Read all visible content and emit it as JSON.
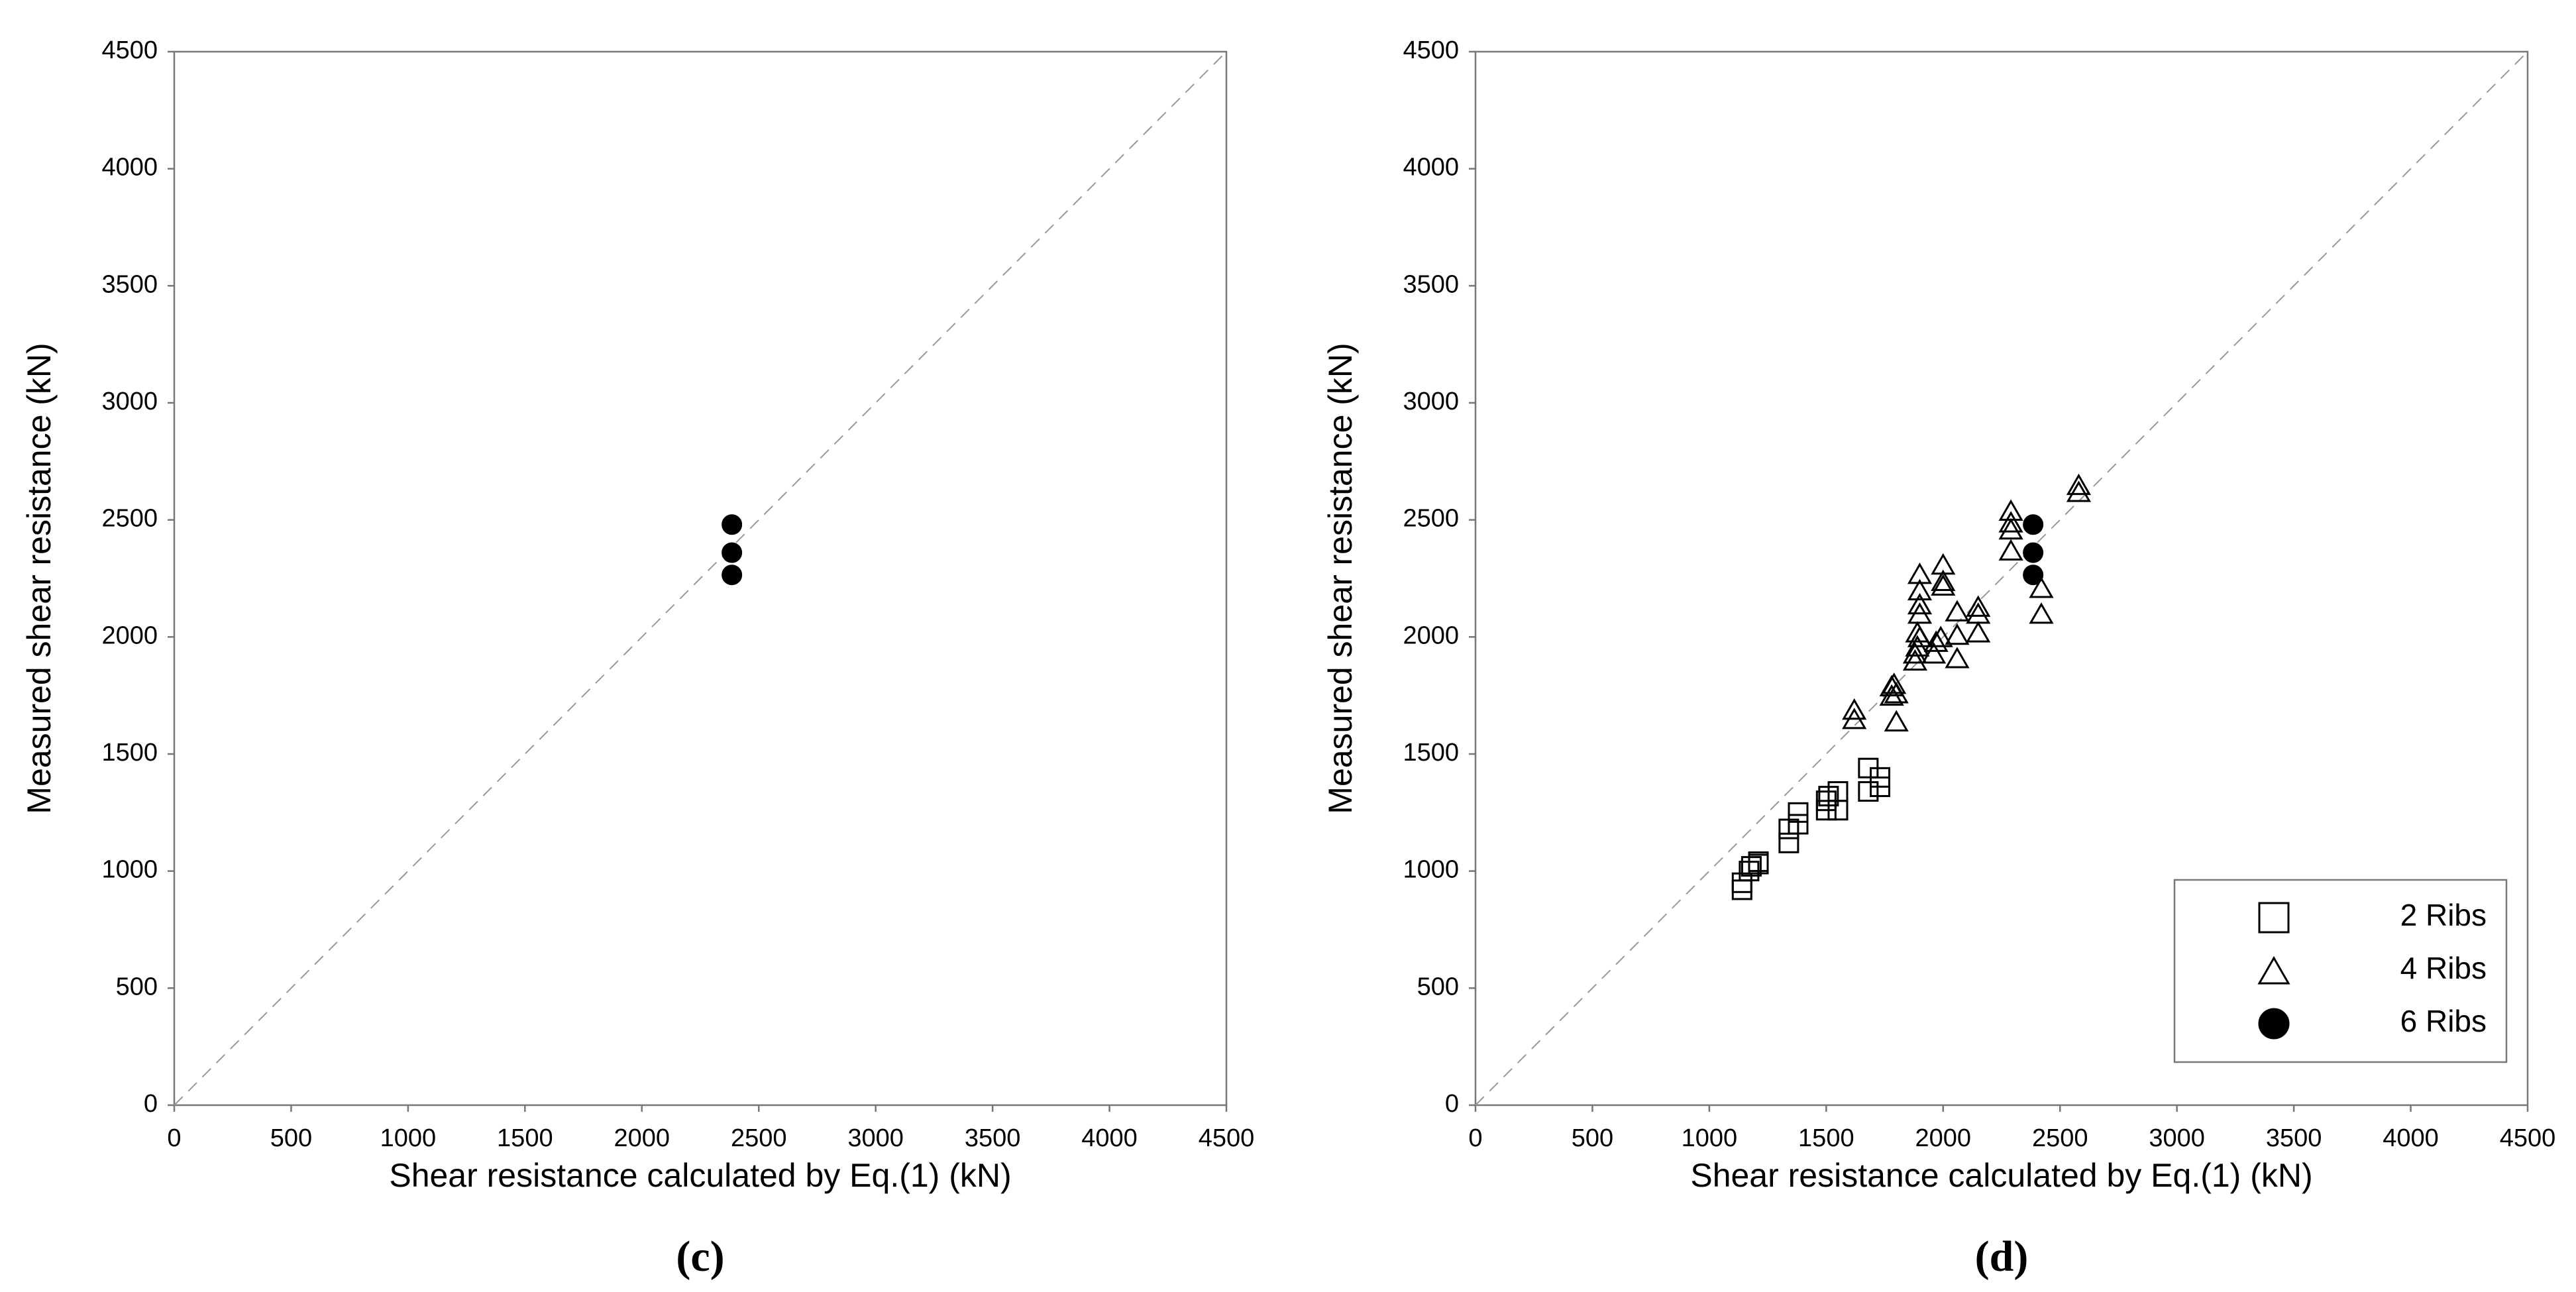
{
  "chart_data": [
    {
      "type": "scatter",
      "panel_label": "(c)",
      "x_label": "Shear resistance calculated by Eq.(1) (kN)",
      "y_label": "Measured shear resistance (kN)",
      "xlim": [
        0,
        4500
      ],
      "ylim": [
        0,
        4500
      ],
      "xticks": [
        0,
        500,
        1000,
        1500,
        2000,
        2500,
        3000,
        3500,
        4000,
        4500
      ],
      "yticks": [
        0,
        500,
        1000,
        1500,
        2000,
        2500,
        3000,
        3500,
        4000,
        4500
      ],
      "reference_line": true,
      "legend": false,
      "series": [
        {
          "marker": "circle",
          "filled": true,
          "color": "#000000",
          "x": [
            2385,
            2385,
            2385
          ],
          "y": [
            2480,
            2360,
            2265
          ]
        }
      ]
    },
    {
      "type": "scatter",
      "panel_label": "(d)",
      "x_label": "Shear resistance calculated by Eq.(1) (kN)",
      "y_label": "Measured shear resistance (kN)",
      "xlim": [
        0,
        4500
      ],
      "ylim": [
        0,
        4500
      ],
      "xticks": [
        0,
        500,
        1000,
        1500,
        2000,
        2500,
        3000,
        3500,
        4000,
        4500
      ],
      "yticks": [
        0,
        500,
        1000,
        1500,
        2000,
        2500,
        3000,
        3500,
        4000,
        4500
      ],
      "reference_line": true,
      "legend": "lower right",
      "series": [
        {
          "name": "2 Ribs",
          "marker": "square",
          "filled": false,
          "color": "#000000",
          "x": [
            1140,
            1140,
            1170,
            1180,
            1210,
            1210,
            1340,
            1340,
            1380,
            1380,
            1500,
            1500,
            1510,
            1550,
            1550,
            1680,
            1680,
            1730,
            1730
          ],
          "y": [
            920,
            950,
            1000,
            1020,
            1030,
            1040,
            1120,
            1180,
            1200,
            1250,
            1260,
            1300,
            1320,
            1260,
            1340,
            1340,
            1440,
            1360,
            1400
          ]
        },
        {
          "name": "4 Ribs",
          "marker": "triangle",
          "filled": false,
          "color": "#000000",
          "x": [
            1620,
            1620,
            1800,
            1780,
            1780,
            1790,
            1800,
            1880,
            1880,
            1890,
            1890,
            1900,
            1900,
            1900,
            1900,
            1900,
            1960,
            1970,
            1990,
            2000,
            2000,
            2000,
            2060,
            2060,
            2060,
            2150,
            2150,
            2150,
            2290,
            2290,
            2290,
            2290,
            2420,
            2420,
            2580,
            2580
          ],
          "y": [
            1650,
            1690,
            1640,
            1750,
            1790,
            1800,
            1760,
            1900,
            1930,
            1960,
            2020,
            2000,
            2100,
            2140,
            2200,
            2270,
            1930,
            1980,
            2000,
            2220,
            2240,
            2310,
            1910,
            2010,
            2110,
            2020,
            2100,
            2130,
            2370,
            2460,
            2490,
            2540,
            2100,
            2210,
            2620,
            2650
          ]
        },
        {
          "name": "6 Ribs",
          "marker": "circle",
          "filled": true,
          "color": "#000000",
          "x": [
            2385,
            2385,
            2385
          ],
          "y": [
            2480,
            2360,
            2265
          ]
        }
      ]
    }
  ]
}
